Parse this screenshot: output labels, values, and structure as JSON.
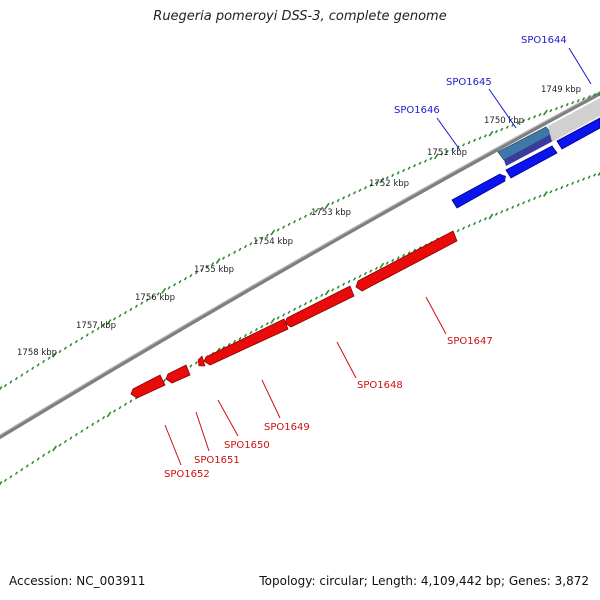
{
  "title": "Ruegeria pomeroyi DSS-3, complete genome",
  "footer": {
    "accession": "Accession: NC_003911",
    "summary": "Topology: circular; Length: 4,109,442 bp; Genes: 3,872"
  },
  "colors": {
    "forward_gene": "#0a14ee",
    "reverse_gene": "#e90a0a",
    "highlight_gene": "#3e78a8",
    "tick": "#2a8a2a",
    "backbone": "#8a8a8a",
    "forward_label": "#1a1acc",
    "reverse_label": "#cc1010"
  },
  "scale": {
    "unit": "kbp",
    "major_ticks": [
      {
        "kbp": 1749,
        "label": "1749 kbp"
      },
      {
        "kbp": 1750,
        "label": "1750 kbp"
      },
      {
        "kbp": 1751,
        "label": "1751 kbp"
      },
      {
        "kbp": 1752,
        "label": "1752 kbp"
      },
      {
        "kbp": 1753,
        "label": "1753 kbp"
      },
      {
        "kbp": 1754,
        "label": "1754 kbp"
      },
      {
        "kbp": 1755,
        "label": "1755 kbp"
      },
      {
        "kbp": 1756,
        "label": "1756 kbp"
      },
      {
        "kbp": 1757,
        "label": "1757 kbp"
      },
      {
        "kbp": 1758,
        "label": "1758 kbp"
      }
    ]
  },
  "genes": [
    {
      "id": "SPO1644",
      "strand": "forward"
    },
    {
      "id": "SPO1645",
      "strand": "forward"
    },
    {
      "id": "SPO1646",
      "strand": "forward"
    },
    {
      "id": "SPO1647",
      "strand": "reverse"
    },
    {
      "id": "SPO1648",
      "strand": "reverse"
    },
    {
      "id": "SPO1649",
      "strand": "reverse"
    },
    {
      "id": "SPO1650",
      "strand": "reverse"
    },
    {
      "id": "SPO1651",
      "strand": "reverse"
    },
    {
      "id": "SPO1652",
      "strand": "reverse"
    }
  ]
}
